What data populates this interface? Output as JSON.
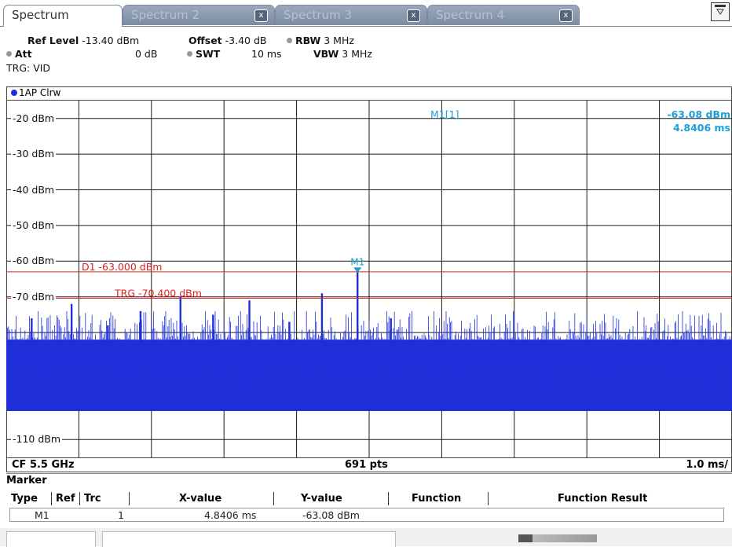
{
  "tabs": [
    {
      "label": "Spectrum",
      "active": true
    },
    {
      "label": "Spectrum 2",
      "active": false
    },
    {
      "label": "Spectrum 3",
      "active": false
    },
    {
      "label": "Spectrum 4",
      "active": false
    }
  ],
  "close_glyph": "x",
  "header": {
    "ref_level_label": "Ref Level",
    "ref_level_value": "-13.40 dBm",
    "offset_label": "Offset",
    "offset_value": "-3.40 dB",
    "rbw_label": "RBW",
    "rbw_value": "3 MHz",
    "att_label": "Att",
    "att_value": "0 dB",
    "swt_label": "SWT",
    "swt_value": "10 ms",
    "vbw_label": "VBW",
    "vbw_value": "3 MHz",
    "trigger": "TRG: VID"
  },
  "trace_label": "1AP Clrw",
  "chart_data": {
    "type": "line",
    "y_unit": "dBm",
    "ylim": [
      -115,
      -15
    ],
    "xlim": [
      0,
      10
    ],
    "x_unit": "ms",
    "y_ticks": [
      "-20 dBm",
      "-30 dBm",
      "-40 dBm",
      "-50 dBm",
      "-60 dBm",
      "-70 dBm",
      "-110 dBm"
    ],
    "y_tick_values": [
      -20,
      -30,
      -40,
      -50,
      -60,
      -70,
      -110
    ],
    "grid": true,
    "noise_floor_range": [
      -108,
      -78
    ],
    "pulses": [
      {
        "x": 0.35,
        "y": -76
      },
      {
        "x": 0.9,
        "y": -72
      },
      {
        "x": 1.4,
        "y": -78
      },
      {
        "x": 1.85,
        "y": -74
      },
      {
        "x": 2.4,
        "y": -70
      },
      {
        "x": 2.85,
        "y": -75
      },
      {
        "x": 3.35,
        "y": -71
      },
      {
        "x": 3.9,
        "y": -77
      },
      {
        "x": 4.35,
        "y": -69
      },
      {
        "x": 4.84,
        "y": -63.08
      },
      {
        "x": 5.3,
        "y": -76
      }
    ],
    "lines": [
      {
        "name": "D1",
        "label": "D1 -63.000 dBm",
        "y": -63.0,
        "color": "#e02020"
      },
      {
        "name": "TRG",
        "label": "TRG -70.400 dBm",
        "y": -70.4,
        "color": "#e02020"
      }
    ],
    "marker": {
      "name": "M1",
      "x": 4.8406,
      "y": -63.08,
      "color": "#1aa0d8"
    },
    "trace_color": "#1f2fd8"
  },
  "marker_readout": {
    "name": "M1[1]",
    "y": "-63.08 dBm",
    "x": "4.8406 ms"
  },
  "footer": {
    "center_freq": "CF 5.5 GHz",
    "points": "691 pts",
    "scale": "1.0 ms/"
  },
  "marker_table": {
    "title": "Marker",
    "headers": [
      "Type",
      "Ref",
      "Trc",
      "X-value",
      "Y-value",
      "Function",
      "Function Result"
    ],
    "rows": [
      {
        "type": "M1",
        "ref": "",
        "trc": "1",
        "x": "4.8406 ms",
        "y": "-63.08 dBm",
        "function": "",
        "result": ""
      }
    ]
  }
}
